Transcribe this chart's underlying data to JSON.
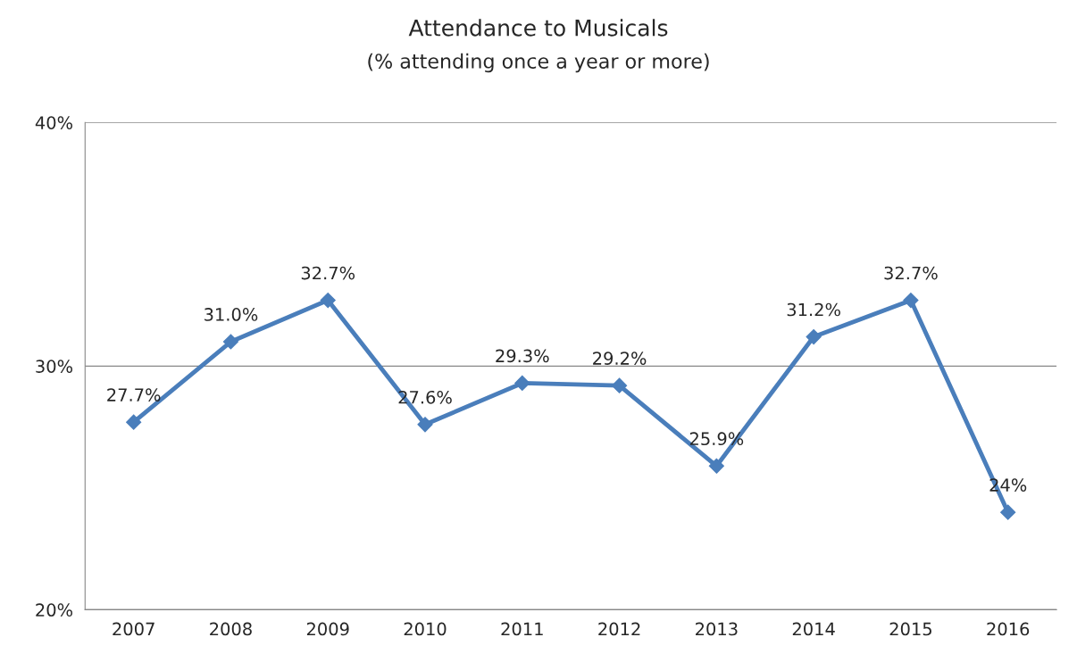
{
  "chart_data": {
    "type": "line",
    "title": "Attendance to Musicals",
    "subtitle": "(% attending once a year or more)",
    "categories": [
      "2007",
      "2008",
      "2009",
      "2010",
      "2011",
      "2012",
      "2013",
      "2014",
      "2015",
      "2016"
    ],
    "series": [
      {
        "color": "#4a7ebb",
        "values": [
          27.7,
          31.0,
          32.7,
          27.6,
          29.3,
          29.2,
          25.9,
          31.2,
          32.7,
          24
        ]
      }
    ],
    "value_labels": [
      "27.7%",
      "31.0%",
      "32.7%",
      "27.6%",
      "29.3%",
      "29.2%",
      "25.9%",
      "31.2%",
      "32.7%",
      "24%"
    ],
    "ylim": [
      20,
      40
    ],
    "yticks": [
      {
        "value": 20,
        "label": "20%"
      },
      {
        "value": 30,
        "label": "30%"
      },
      {
        "value": 40,
        "label": "40%"
      }
    ],
    "grid": "y",
    "marker": "diamond",
    "line_style": "solid",
    "legend": false
  }
}
